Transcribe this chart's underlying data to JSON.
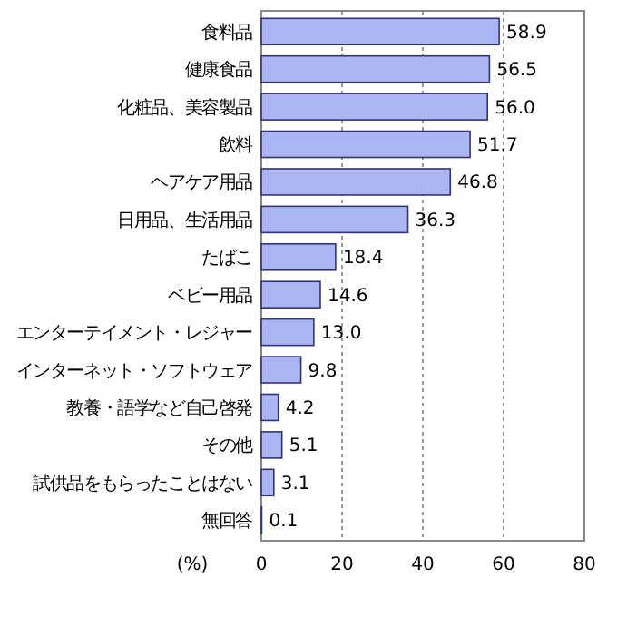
{
  "chart_data": {
    "type": "bar",
    "orientation": "horizontal",
    "xlabel": "(%)",
    "categories": [
      "食料品",
      "健康食品",
      "化粧品、美容製品",
      "飲料",
      "ヘアケア用品",
      "日用品、生活用品",
      "たばこ",
      "ベビー用品",
      "エンターテイメント・レジャー",
      "インターネット・ソフトウェア",
      "教養・語学など自己啓発",
      "その他",
      "試供品をもらったことはない",
      "無回答"
    ],
    "values": [
      58.9,
      56.5,
      56.0,
      51.7,
      46.8,
      36.3,
      18.4,
      14.6,
      13.0,
      9.8,
      4.2,
      5.1,
      3.1,
      0.1
    ],
    "color": "#a9b6f2",
    "xlim": [
      0,
      80
    ],
    "xticks": [
      0,
      20,
      40,
      60,
      80
    ],
    "grid": "x",
    "value_labels": [
      "58.9",
      "56.5",
      "56.0",
      "51.7",
      "46.8",
      "36.3",
      "18.4",
      "14.6",
      "13.0",
      "9.8",
      "4.2",
      "5.1",
      "3.1",
      "0.1"
    ]
  }
}
